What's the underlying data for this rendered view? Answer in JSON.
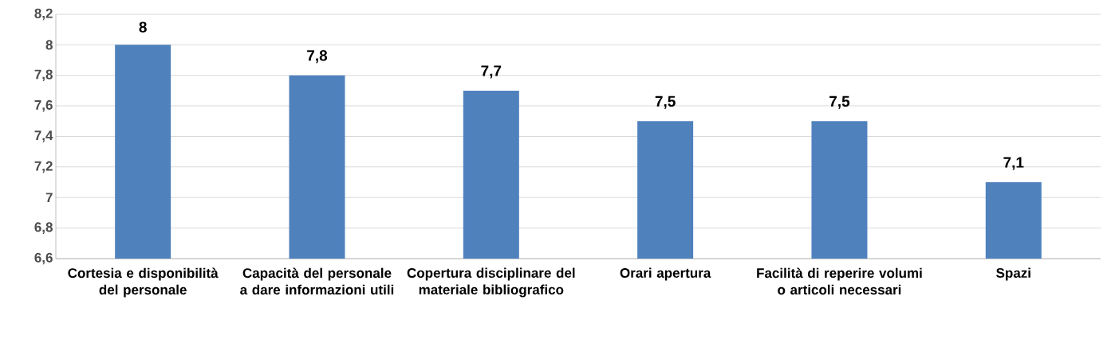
{
  "chart_data": {
    "type": "bar",
    "categories": [
      "Cortesia e disponibilità del personale",
      "Capacità del personale a dare informazioni utili",
      "Copertura disciplinare del materiale bibliografico",
      "Orari apertura",
      "Facilità di reperire volumi o articoli necessari",
      "Spazi"
    ],
    "values": [
      8,
      7.8,
      7.7,
      7.5,
      7.5,
      7.1
    ],
    "value_labels": [
      "8",
      "7,8",
      "7,7",
      "7,5",
      "7,5",
      "7,1"
    ],
    "color": "#4f81bd",
    "ylim": [
      6.6,
      8.2
    ],
    "yticks": [
      {
        "value": 6.6,
        "label": "6,6"
      },
      {
        "value": 6.8,
        "label": "6,8"
      },
      7,
      {
        "value": 7.2,
        "label": "7,2"
      },
      {
        "value": 7.4,
        "label": "7,4"
      },
      {
        "value": 7.6,
        "label": "7,6"
      },
      {
        "value": 7.8,
        "label": "7,8"
      },
      8,
      {
        "value": 8.2,
        "label": "8,2"
      }
    ],
    "grid": "y"
  }
}
